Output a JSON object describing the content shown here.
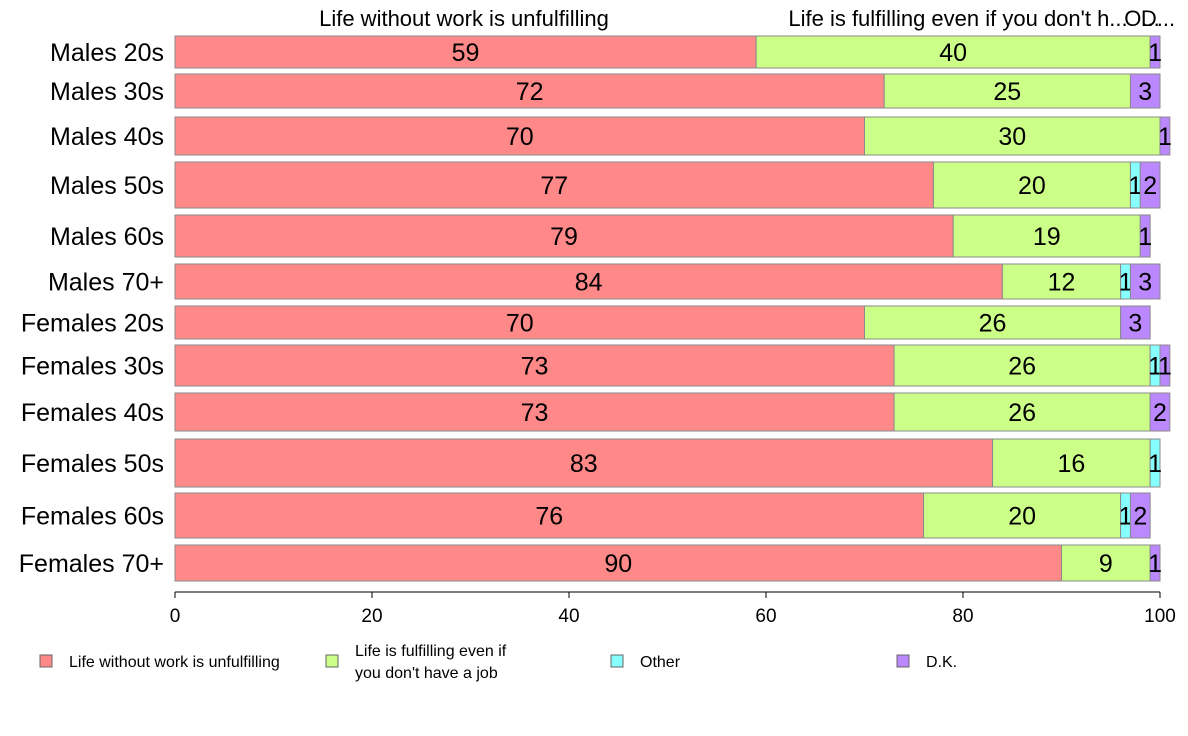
{
  "chart_data": {
    "type": "bar",
    "orientation": "horizontal",
    "stacked": true,
    "categories": [
      "Males 20s",
      "Males 30s",
      "Males 40s",
      "Males 50s",
      "Males 60s",
      "Males 70+",
      "Females 20s",
      "Females 30s",
      "Females 40s",
      "Females 50s",
      "Females 60s",
      "Females 70+"
    ],
    "series": [
      {
        "name": "Life without work is unfulfilling",
        "color": "#ff8888",
        "values": [
          59,
          72,
          70,
          77,
          79,
          84,
          70,
          73,
          73,
          83,
          76,
          90
        ]
      },
      {
        "name": "Life is fulfilling even if you don't have a job",
        "color": "#ccff88",
        "values": [
          40,
          25,
          30,
          20,
          19,
          12,
          26,
          26,
          26,
          16,
          20,
          9
        ]
      },
      {
        "name": "Other",
        "color": "#88ffff",
        "values": [
          0,
          0,
          0,
          1,
          0,
          1,
          0,
          1,
          0,
          1,
          1,
          0
        ]
      },
      {
        "name": "D.K.",
        "color": "#bb88ff",
        "values": [
          1,
          3,
          1,
          2,
          1,
          3,
          3,
          1,
          2,
          0,
          2,
          1
        ]
      }
    ],
    "bar_label_values": [
      [
        "59",
        "40",
        "",
        "1"
      ],
      [
        "72",
        "25",
        "",
        "3"
      ],
      [
        "70",
        "30",
        "",
        "1"
      ],
      [
        "77",
        "20",
        "1",
        "2"
      ],
      [
        "79",
        "19",
        "",
        "1"
      ],
      [
        "84",
        "12",
        "1",
        "3"
      ],
      [
        "70",
        "26",
        "",
        "3"
      ],
      [
        "73",
        "26",
        "1",
        "1"
      ],
      [
        "73",
        "26",
        "",
        "2"
      ],
      [
        "83",
        "16",
        "1",
        ""
      ],
      [
        "76",
        "20",
        "1",
        "2"
      ],
      [
        "90",
        "9",
        "",
        "1"
      ]
    ],
    "top_labels": [
      "Life without work is unfulfilling",
      "Life is fulfilling even if you don't h...",
      "O...",
      "D..."
    ],
    "legend_entries": [
      {
        "lines": [
          "Life without work is unfulfilling"
        ],
        "color": "#ff8888"
      },
      {
        "lines": [
          "Life is fulfilling even if",
          "you don't have a job"
        ],
        "color": "#ccff88"
      },
      {
        "lines": [
          "Other"
        ],
        "color": "#88ffff"
      },
      {
        "lines": [
          "D.K."
        ],
        "color": "#bb88ff"
      }
    ],
    "xlim": [
      0,
      100
    ],
    "x_ticks": [
      0,
      20,
      40,
      60,
      80,
      100
    ],
    "xlabel": "",
    "ylabel": "",
    "grid": false,
    "legend_position": "bottom"
  }
}
